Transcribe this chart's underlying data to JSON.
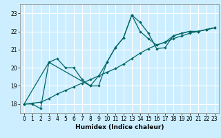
{
  "xlabel": "Humidex (Indice chaleur)",
  "bg_color": "#cceeff",
  "grid_color": "#ffffff",
  "line_color": "#006666",
  "xlim": [
    -0.5,
    23.5
  ],
  "ylim": [
    17.5,
    23.5
  ],
  "xticks": [
    0,
    1,
    2,
    3,
    4,
    5,
    6,
    7,
    8,
    9,
    10,
    11,
    12,
    13,
    14,
    15,
    16,
    17,
    18,
    19,
    20,
    21,
    22,
    23
  ],
  "yticks": [
    18,
    19,
    20,
    21,
    22,
    23
  ],
  "line1_x": [
    0,
    1,
    2,
    3,
    4,
    5,
    6,
    7,
    8,
    9,
    10,
    11,
    12,
    13,
    14,
    15,
    16,
    17,
    18,
    19,
    20,
    21,
    22,
    23
  ],
  "line1_y": [
    18.0,
    18.05,
    18.1,
    18.3,
    18.55,
    18.75,
    18.95,
    19.15,
    19.35,
    19.55,
    19.75,
    19.95,
    20.2,
    20.5,
    20.8,
    21.05,
    21.25,
    21.4,
    21.6,
    21.75,
    21.9,
    22.0,
    22.1,
    22.2
  ],
  "line2_x": [
    0,
    1,
    2,
    3,
    4,
    5,
    6,
    7,
    8,
    9,
    10,
    11,
    12,
    13,
    14,
    15,
    16,
    17,
    18,
    19,
    20,
    21,
    22,
    23
  ],
  "line2_y": [
    18.0,
    18.0,
    17.75,
    20.3,
    20.5,
    20.0,
    20.0,
    19.35,
    19.0,
    19.0,
    20.3,
    21.1,
    21.65,
    22.9,
    22.5,
    21.9,
    21.05,
    21.1,
    21.75,
    21.9,
    22.0,
    22.0,
    22.1,
    22.2
  ],
  "line3_x": [
    0,
    3,
    8,
    9,
    10,
    11,
    12,
    13,
    14,
    15,
    16,
    17,
    18,
    19,
    20,
    21,
    22,
    23
  ],
  "line3_y": [
    18.0,
    20.3,
    19.0,
    19.55,
    20.3,
    21.1,
    21.65,
    22.9,
    22.0,
    21.6,
    21.25,
    21.4,
    21.75,
    21.9,
    22.0,
    22.0,
    22.1,
    22.2
  ]
}
